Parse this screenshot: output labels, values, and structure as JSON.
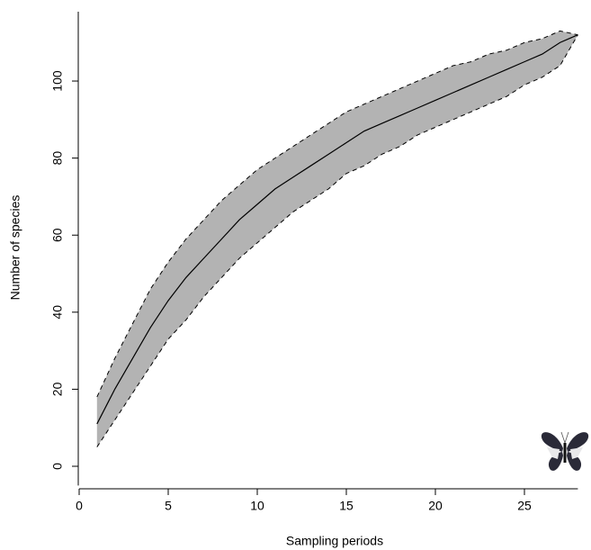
{
  "chart_data": {
    "type": "line",
    "x_label": "Sampling periods",
    "y_label": "Number of species",
    "x": [
      1,
      2,
      3,
      4,
      5,
      6,
      7,
      8,
      9,
      10,
      11,
      12,
      13,
      14,
      15,
      16,
      17,
      18,
      19,
      20,
      21,
      22,
      23,
      24,
      25,
      26,
      27,
      28
    ],
    "series": [
      {
        "color": "#000000",
        "values": [
          11,
          20,
          28,
          36,
          43,
          49,
          54,
          59,
          64,
          68,
          72,
          75,
          78,
          81,
          84,
          87,
          89,
          91,
          93,
          95,
          97,
          99,
          101,
          103,
          105,
          107,
          110,
          112
        ]
      }
    ],
    "band": {
      "color": "#b3b3b3",
      "line_color": "#000000",
      "upper": [
        18,
        28,
        37,
        46,
        53,
        59,
        64,
        69,
        73,
        77,
        80,
        83,
        86,
        89,
        92,
        94,
        96,
        98,
        100,
        102,
        104,
        105,
        107,
        108,
        110,
        111,
        113,
        112
      ],
      "lower": [
        5,
        12,
        19,
        26,
        33,
        38,
        44,
        49,
        54,
        58,
        62,
        66,
        69,
        72,
        76,
        78,
        81,
        83,
        86,
        88,
        90,
        92,
        94,
        96,
        99,
        101,
        104,
        112
      ]
    },
    "xlim": [
      0,
      28
    ],
    "ylim": [
      -5,
      118
    ],
    "xticks": [
      0,
      5,
      10,
      15,
      20,
      25
    ],
    "yticks": [
      0,
      20,
      40,
      60,
      80,
      100
    ],
    "grid": false
  }
}
